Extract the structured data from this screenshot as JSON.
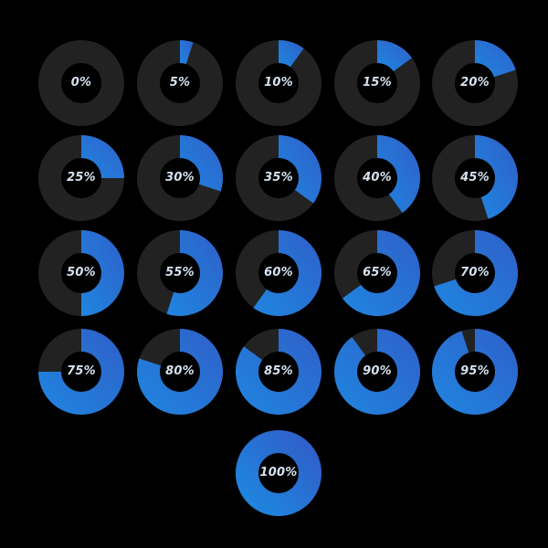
{
  "colors": {
    "background": "#000000",
    "track": "#222222",
    "fill_light": "#1f86e0",
    "fill_dark": "#2f5fc8",
    "label": "#d6e2f0"
  },
  "rings": [
    {
      "label": "0%",
      "progress": 0.0
    },
    {
      "label": "5%",
      "progress": 0.05
    },
    {
      "label": "10%",
      "progress": 0.1
    },
    {
      "label": "15%",
      "progress": 0.15
    },
    {
      "label": "20%",
      "progress": 0.2
    },
    {
      "label": "25%",
      "progress": 0.25
    },
    {
      "label": "30%",
      "progress": 0.3
    },
    {
      "label": "35%",
      "progress": 0.35
    },
    {
      "label": "40%",
      "progress": 0.4
    },
    {
      "label": "45%",
      "progress": 0.45
    },
    {
      "label": "50%",
      "progress": 0.5
    },
    {
      "label": "55%",
      "progress": 0.55
    },
    {
      "label": "60%",
      "progress": 0.6
    },
    {
      "label": "65%",
      "progress": 0.65
    },
    {
      "label": "70%",
      "progress": 0.7
    },
    {
      "label": "75%",
      "progress": 0.75
    },
    {
      "label": "80%",
      "progress": 0.8
    },
    {
      "label": "85%",
      "progress": 0.85
    },
    {
      "label": "90%",
      "progress": 0.9
    },
    {
      "label": "95%",
      "progress": 0.95
    },
    {
      "label": "100%",
      "progress": 1.0
    }
  ]
}
